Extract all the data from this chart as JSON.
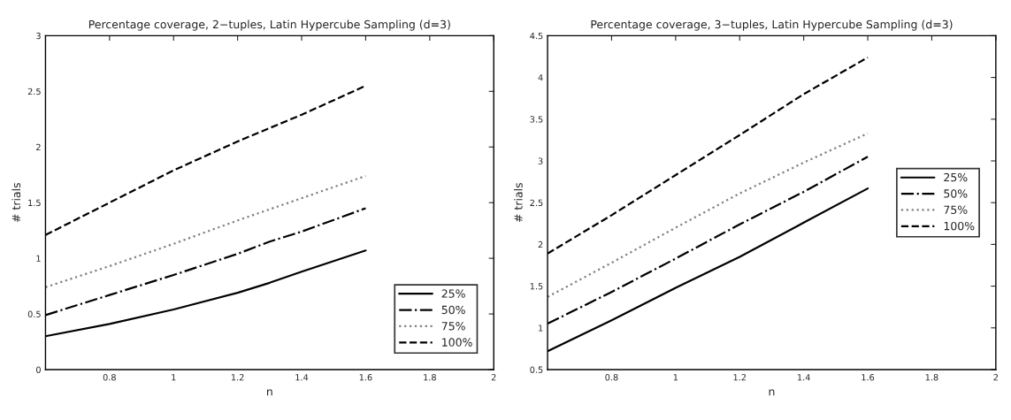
{
  "chart_data": [
    {
      "type": "line",
      "title": "Percentage coverage, 2−tuples, Latin Hypercube Sampling (d=3)",
      "xlabel": "n",
      "ylabel": "# trials",
      "xlim": [
        0.6,
        2
      ],
      "xticks": [
        0.8,
        1,
        1.2,
        1.4,
        1.6,
        1.8,
        2
      ],
      "ylim": [
        0,
        3
      ],
      "yticks": [
        0,
        0.5,
        1,
        1.5,
        2,
        2.5,
        3
      ],
      "grid": false,
      "legend": "bottom right",
      "x": [
        0.6,
        0.8,
        1.0,
        1.2,
        1.3,
        1.4,
        1.6
      ],
      "series": [
        {
          "name": "25%",
          "color": "#000000",
          "line_style": "solid",
          "values": [
            0.3,
            0.41,
            0.54,
            0.69,
            0.78,
            0.88,
            1.07
          ]
        },
        {
          "name": "50%",
          "color": "#000000",
          "line_style": "dashdot",
          "values": [
            0.49,
            0.67,
            0.85,
            1.04,
            1.15,
            1.24,
            1.45
          ]
        },
        {
          "name": "75%",
          "color": "#808080",
          "line_style": "dotted",
          "values": [
            0.74,
            0.93,
            1.13,
            1.34,
            1.44,
            1.54,
            1.74
          ]
        },
        {
          "name": "100%",
          "color": "#000000",
          "line_style": "dashed",
          "values": [
            1.21,
            1.5,
            1.79,
            2.05,
            2.17,
            2.29,
            2.55
          ]
        }
      ]
    },
    {
      "type": "line",
      "title": "Percentage coverage, 3−tuples, Latin Hypercube Sampling (d=3)",
      "xlabel": "n",
      "ylabel": "# trials",
      "xlim": [
        0.6,
        2
      ],
      "xticks": [
        0.8,
        1,
        1.2,
        1.4,
        1.6,
        1.8,
        2
      ],
      "ylim": [
        0.5,
        4.5
      ],
      "yticks": [
        0.5,
        1,
        1.5,
        2,
        2.5,
        3,
        3.5,
        4,
        4.5
      ],
      "grid": false,
      "legend": "center right",
      "x": [
        0.6,
        0.8,
        1.0,
        1.2,
        1.4,
        1.6
      ],
      "series": [
        {
          "name": "25%",
          "color": "#000000",
          "line_style": "solid",
          "values": [
            0.72,
            1.09,
            1.48,
            1.85,
            2.26,
            2.67
          ]
        },
        {
          "name": "50%",
          "color": "#000000",
          "line_style": "dashdot",
          "values": [
            1.05,
            1.43,
            1.83,
            2.24,
            2.63,
            3.05
          ]
        },
        {
          "name": "75%",
          "color": "#808080",
          "line_style": "dotted",
          "values": [
            1.37,
            1.78,
            2.2,
            2.61,
            2.98,
            3.33
          ]
        },
        {
          "name": "100%",
          "color": "#000000",
          "line_style": "dashed",
          "values": [
            1.89,
            2.35,
            2.83,
            3.31,
            3.8,
            4.24
          ]
        }
      ]
    }
  ]
}
